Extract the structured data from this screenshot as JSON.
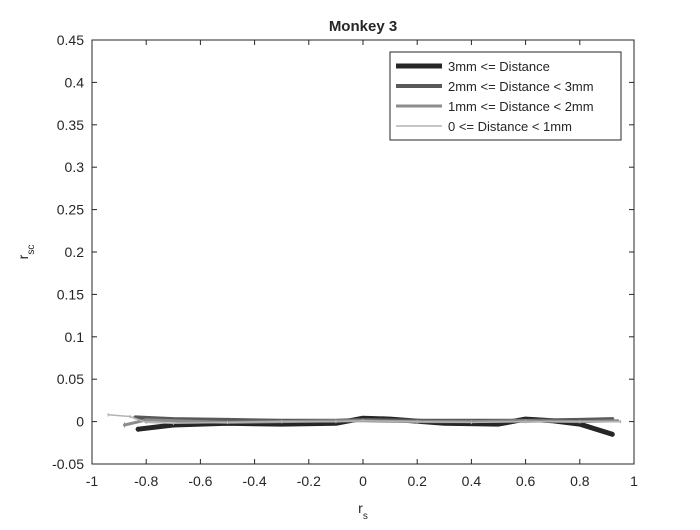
{
  "chart_data": {
    "type": "line",
    "title": "Monkey 3",
    "xlabel": "r",
    "xlabel_sub": "s",
    "ylabel": "r",
    "ylabel_sub": "sc",
    "xlim": [
      -1,
      1
    ],
    "ylim": [
      -0.05,
      0.45
    ],
    "xticks": [
      -1,
      -0.8,
      -0.6,
      -0.4,
      -0.2,
      0,
      0.2,
      0.4,
      0.6,
      0.8,
      1
    ],
    "xtick_labels": [
      "-1",
      "-0.8",
      "-0.6",
      "-0.4",
      "-0.2",
      "0",
      "0.2",
      "0.4",
      "0.6",
      "0.8",
      "1"
    ],
    "yticks": [
      -0.05,
      0,
      0.05,
      0.1,
      0.15,
      0.2,
      0.25,
      0.3,
      0.35,
      0.4,
      0.45
    ],
    "ytick_labels": [
      "-0.05",
      "0",
      "0.05",
      "0.1",
      "0.15",
      "0.2",
      "0.25",
      "0.3",
      "0.35",
      "0.4",
      "0.45"
    ],
    "grid": false,
    "legend_position": "top-right",
    "series": [
      {
        "name": "3mm <= Distance",
        "color": "#262626",
        "x": [
          -0.83,
          -0.7,
          -0.5,
          -0.3,
          -0.1,
          0,
          0.1,
          0.3,
          0.5,
          0.6,
          0.7,
          0.8,
          0.92
        ],
        "y": [
          -0.009,
          -0.004,
          -0.002,
          -0.003,
          -0.002,
          0.004,
          0.003,
          -0.002,
          -0.003,
          0.003,
          0.001,
          -0.003,
          -0.015
        ],
        "error": [
          0.003,
          0.002,
          0.002,
          0.002,
          0.002,
          0.002,
          0.002,
          0.002,
          0.002,
          0.002,
          0.002,
          0.002,
          0.003
        ]
      },
      {
        "name": "2mm <= Distance < 3mm",
        "color": "#595959",
        "x": [
          -0.84,
          -0.7,
          -0.5,
          -0.3,
          -0.1,
          0,
          0.2,
          0.4,
          0.6,
          0.8,
          0.92
        ],
        "y": [
          0.005,
          0.003,
          0.002,
          0.001,
          0.001,
          0.002,
          0.001,
          0.001,
          0.001,
          0.002,
          0.003
        ],
        "error": [
          0.002,
          0.002,
          0.002,
          0.002,
          0.002,
          0.002,
          0.002,
          0.002,
          0.002,
          0.002,
          0.002
        ]
      },
      {
        "name": "1mm <= Distance < 2mm",
        "color": "#8c8c8c",
        "x": [
          -0.88,
          -0.8,
          -0.7,
          -0.5,
          -0.3,
          -0.1,
          0,
          0.2,
          0.4,
          0.6,
          0.8,
          0.94
        ],
        "y": [
          -0.004,
          0.002,
          0.001,
          -0.001,
          0.0,
          0.001,
          0.001,
          0.0,
          0.0,
          0.001,
          0.0,
          0.001
        ],
        "error": [
          0.003,
          0.002,
          0.002,
          0.002,
          0.002,
          0.002,
          0.002,
          0.002,
          0.002,
          0.002,
          0.002,
          0.002
        ]
      },
      {
        "name": "0 <= Distance < 1mm",
        "color": "#b3b3b3",
        "x": [
          -0.94,
          -0.86,
          -0.8,
          -0.7,
          -0.5,
          -0.3,
          -0.1,
          0,
          0.2,
          0.4,
          0.6,
          0.8,
          0.95
        ],
        "y": [
          0.008,
          0.006,
          -0.001,
          -0.002,
          -0.001,
          0.0,
          0.0,
          0.001,
          0.0,
          -0.001,
          0.0,
          0.0,
          0.0
        ],
        "error": [
          0.002,
          0.002,
          0.002,
          0.002,
          0.002,
          0.002,
          0.002,
          0.002,
          0.002,
          0.002,
          0.002,
          0.002,
          0.002
        ]
      }
    ]
  }
}
